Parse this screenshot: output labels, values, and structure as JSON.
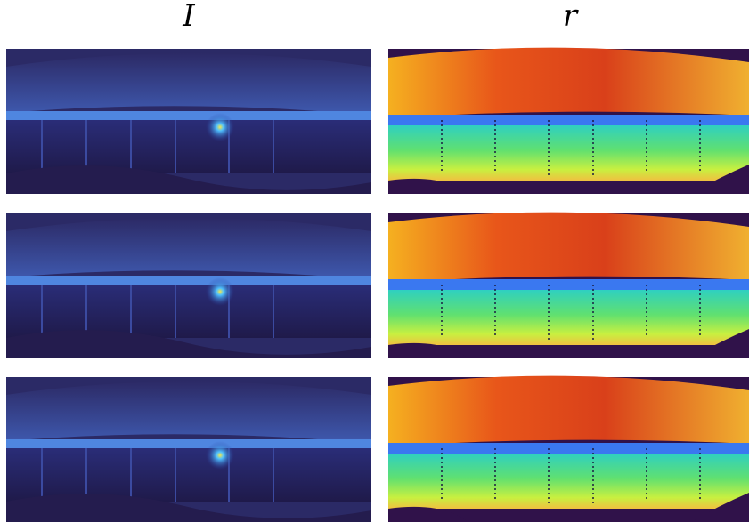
{
  "columns": [
    {
      "label": "I"
    },
    {
      "label": "r"
    }
  ]
}
